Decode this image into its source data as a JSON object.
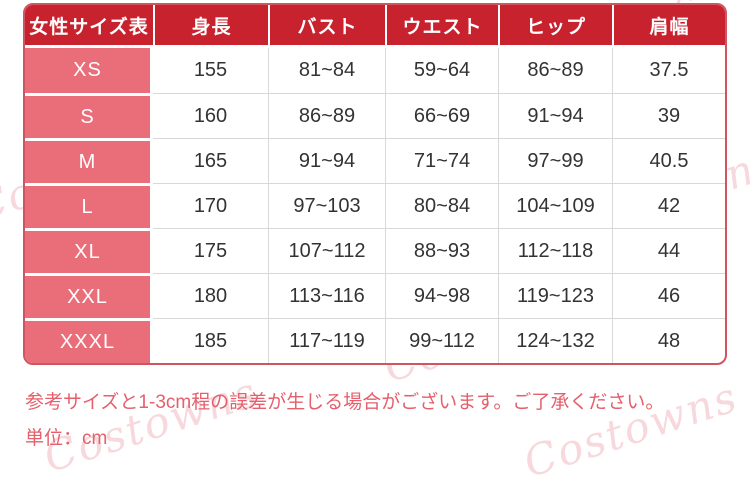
{
  "colors": {
    "header_bg": "#c8222f",
    "label_bg": "#ea6e7a",
    "header_text": "#ffffff",
    "value_text": "#333333",
    "grid_line": "#d8d8d8",
    "outer_border": "#cf5560",
    "note_text": "#e4606c",
    "watermark": "#f2b9c0"
  },
  "table": {
    "headers": [
      "女性サイズ表",
      "身長",
      "バスト",
      "ウエスト",
      "ヒップ",
      "肩幅"
    ],
    "rows": [
      {
        "size": "XS",
        "values": [
          "155",
          "81~84",
          "59~64",
          "86~89",
          "37.5"
        ]
      },
      {
        "size": "S",
        "values": [
          "160",
          "86~89",
          "66~69",
          "91~94",
          "39"
        ]
      },
      {
        "size": "M",
        "values": [
          "165",
          "91~94",
          "71~74",
          "97~99",
          "40.5"
        ]
      },
      {
        "size": "L",
        "values": [
          "170",
          "97~103",
          "80~84",
          "104~109",
          "42"
        ]
      },
      {
        "size": "XL",
        "values": [
          "175",
          "107~112",
          "88~93",
          "112~118",
          "44"
        ]
      },
      {
        "size": "XXL",
        "values": [
          "180",
          "113~116",
          "94~98",
          "119~123",
          "46"
        ]
      },
      {
        "size": "XXXL",
        "values": [
          "185",
          "117~119",
          "99~112",
          "124~132",
          "48"
        ]
      }
    ]
  },
  "notes": {
    "line1": "参考サイズと1-3cm程の誤差が生じる場合がございます。ご了承ください。",
    "line2": "単位：cm"
  },
  "watermark": {
    "text": "Costowns"
  }
}
